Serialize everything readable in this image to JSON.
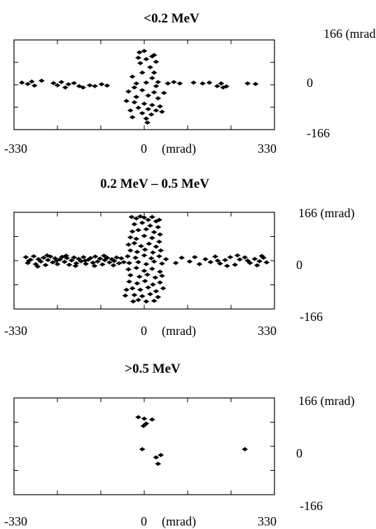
{
  "chart_data": [
    {
      "type": "scatter",
      "title": "<0.2 MeV",
      "xlim": [
        -330,
        330
      ],
      "ylim": [
        -166,
        166
      ],
      "x_tick_labels": {
        "min": "-330",
        "zero": "0",
        "unit": "(mrad)",
        "max": "330"
      },
      "y_tick_labels": {
        "max": "166 (mrad)",
        "zero": "0",
        "min": "-166"
      },
      "grid": false,
      "points": [
        [
          -310,
          8
        ],
        [
          -295,
          3
        ],
        [
          -285,
          12
        ],
        [
          -278,
          -3
        ],
        [
          -260,
          15
        ],
        [
          -230,
          6
        ],
        [
          -220,
          -2
        ],
        [
          -210,
          10
        ],
        [
          -200,
          -10
        ],
        [
          -192,
          2
        ],
        [
          -178,
          6
        ],
        [
          -165,
          -5
        ],
        [
          -155,
          -10
        ],
        [
          -138,
          -2
        ],
        [
          -125,
          -5
        ],
        [
          -108,
          2
        ],
        [
          -94,
          -3
        ],
        [
          -12,
          120
        ],
        [
          0,
          125
        ],
        [
          20,
          105
        ],
        [
          -15,
          100
        ],
        [
          5,
          95
        ],
        [
          25,
          110
        ],
        [
          30,
          85
        ],
        [
          -10,
          80
        ],
        [
          15,
          65
        ],
        [
          25,
          45
        ],
        [
          -5,
          45
        ],
        [
          -30,
          30
        ],
        [
          20,
          25
        ],
        [
          -20,
          5
        ],
        [
          5,
          8
        ],
        [
          30,
          -5
        ],
        [
          -25,
          -10
        ],
        [
          -5,
          -20
        ],
        [
          25,
          -28
        ],
        [
          10,
          -40
        ],
        [
          -20,
          -45
        ],
        [
          35,
          -50
        ],
        [
          -25,
          -65
        ],
        [
          0,
          -70
        ],
        [
          20,
          -75
        ],
        [
          -15,
          -85
        ],
        [
          10,
          -90
        ],
        [
          30,
          -95
        ],
        [
          -5,
          -105
        ],
        [
          18,
          -110
        ],
        [
          -30,
          -120
        ],
        [
          5,
          -125
        ],
        [
          40,
          -80
        ],
        [
          45,
          -100
        ],
        [
          50,
          -30
        ],
        [
          -40,
          -25
        ],
        [
          -45,
          -60
        ],
        [
          35,
          10
        ],
        [
          -35,
          -95
        ],
        [
          8,
          -140
        ],
        [
          60,
          5
        ],
        [
          75,
          10
        ],
        [
          90,
          5
        ],
        [
          125,
          8
        ],
        [
          148,
          5
        ],
        [
          165,
          8
        ],
        [
          185,
          -5
        ],
        [
          195,
          5
        ],
        [
          200,
          -10
        ],
        [
          208,
          -6
        ],
        [
          262,
          5
        ],
        [
          282,
          3
        ]
      ]
    },
    {
      "type": "scatter",
      "title": "0.2 MeV – 0.5 MeV",
      "xlim": [
        -330,
        330
      ],
      "ylim": [
        -166,
        166
      ],
      "x_tick_labels": {
        "min": "-330",
        "zero": "0",
        "unit": "(mrad)",
        "max": "330"
      },
      "y_tick_labels": {
        "max": "166 (mrad)",
        "zero": "0",
        "min": "-166"
      },
      "grid": false,
      "points": [
        [
          -300,
          12
        ],
        [
          -295,
          -8
        ],
        [
          -288,
          3
        ],
        [
          -280,
          15
        ],
        [
          -275,
          -12
        ],
        [
          -268,
          5
        ],
        [
          -262,
          -3
        ],
        [
          -255,
          10
        ],
        [
          -250,
          -15
        ],
        [
          -244,
          2
        ],
        [
          -238,
          14
        ],
        [
          -232,
          -6
        ],
        [
          -226,
          8
        ],
        [
          -220,
          -12
        ],
        [
          -214,
          4
        ],
        [
          -208,
          13
        ],
        [
          -202,
          -4
        ],
        [
          -196,
          9
        ],
        [
          -190,
          -14
        ],
        [
          -184,
          1
        ],
        [
          -178,
          11
        ],
        [
          -172,
          -9
        ],
        [
          -166,
          6
        ],
        [
          -160,
          -2
        ],
        [
          -154,
          12
        ],
        [
          -148,
          -11
        ],
        [
          -142,
          3
        ],
        [
          -136,
          9
        ],
        [
          -130,
          -7
        ],
        [
          -124,
          14
        ],
        [
          -118,
          -3
        ],
        [
          -112,
          7
        ],
        [
          -106,
          -13
        ],
        [
          -100,
          2
        ],
        [
          -94,
          10
        ],
        [
          -88,
          -6
        ],
        [
          -82,
          5
        ],
        [
          -76,
          -1
        ],
        [
          -70,
          11
        ],
        [
          -64,
          -9
        ],
        [
          -292,
          0
        ],
        [
          -270,
          -20
        ],
        [
          -246,
          18
        ],
        [
          -222,
          0
        ],
        [
          -198,
          17
        ],
        [
          -174,
          -18
        ],
        [
          -150,
          0
        ],
        [
          -126,
          -18
        ],
        [
          -102,
          17
        ],
        [
          -78,
          -16
        ],
        [
          -58,
          8
        ],
        [
          -52,
          -5
        ],
        [
          -20,
          145
        ],
        [
          -10,
          152
        ],
        [
          0,
          148
        ],
        [
          10,
          140
        ],
        [
          20,
          150
        ],
        [
          30,
          135
        ],
        [
          -25,
          125
        ],
        [
          -5,
          130
        ],
        [
          15,
          120
        ],
        [
          35,
          115
        ],
        [
          -30,
          100
        ],
        [
          -15,
          105
        ],
        [
          5,
          108
        ],
        [
          25,
          98
        ],
        [
          40,
          90
        ],
        [
          -35,
          80
        ],
        [
          -20,
          75
        ],
        [
          0,
          85
        ],
        [
          20,
          78
        ],
        [
          38,
          65
        ],
        [
          -40,
          55
        ],
        [
          -25,
          60
        ],
        [
          -8,
          50
        ],
        [
          12,
          58
        ],
        [
          30,
          48
        ],
        [
          -35,
          35
        ],
        [
          -18,
          30
        ],
        [
          2,
          38
        ],
        [
          22,
          28
        ],
        [
          42,
          35
        ],
        [
          -42,
          15
        ],
        [
          -22,
          10
        ],
        [
          0,
          18
        ],
        [
          18,
          8
        ],
        [
          38,
          15
        ],
        [
          -38,
          -8
        ],
        [
          -15,
          -5
        ],
        [
          5,
          -12
        ],
        [
          25,
          -3
        ],
        [
          45,
          -10
        ],
        [
          -40,
          -30
        ],
        [
          -20,
          -25
        ],
        [
          0,
          -35
        ],
        [
          20,
          -28
        ],
        [
          40,
          -38
        ],
        [
          -35,
          -50
        ],
        [
          -12,
          -55
        ],
        [
          8,
          -48
        ],
        [
          28,
          -58
        ],
        [
          45,
          -52
        ],
        [
          -38,
          -72
        ],
        [
          -18,
          -78
        ],
        [
          2,
          -70
        ],
        [
          22,
          -82
        ],
        [
          40,
          -75
        ],
        [
          -30,
          -95
        ],
        [
          -10,
          -100
        ],
        [
          10,
          -92
        ],
        [
          30,
          -105
        ],
        [
          -25,
          -118
        ],
        [
          -5,
          -122
        ],
        [
          15,
          -115
        ],
        [
          35,
          -125
        ],
        [
          -15,
          -135
        ],
        [
          5,
          -140
        ],
        [
          25,
          -138
        ],
        [
          -45,
          -100
        ],
        [
          48,
          -95
        ],
        [
          -48,
          -120
        ],
        [
          -28,
          -140
        ],
        [
          38,
          140
        ],
        [
          -32,
          150
        ],
        [
          55,
          5
        ],
        [
          80,
          -8
        ],
        [
          95,
          10
        ],
        [
          115,
          -3
        ],
        [
          128,
          12
        ],
        [
          140,
          -12
        ],
        [
          155,
          5
        ],
        [
          168,
          -5
        ],
        [
          180,
          14
        ],
        [
          192,
          -10
        ],
        [
          205,
          2
        ],
        [
          218,
          12
        ],
        [
          230,
          -14
        ],
        [
          242,
          4
        ],
        [
          255,
          11
        ],
        [
          268,
          -8
        ],
        [
          280,
          6
        ],
        [
          292,
          -2
        ],
        [
          302,
          10
        ],
        [
          310,
          -6
        ],
        [
          186,
          0
        ],
        [
          210,
          -18
        ],
        [
          236,
          18
        ],
        [
          262,
          0
        ],
        [
          286,
          -16
        ],
        [
          298,
          16
        ]
      ]
    },
    {
      "type": "scatter",
      "title": ">0.5 MeV",
      "xlim": [
        -330,
        330
      ],
      "ylim": [
        -166,
        166
      ],
      "x_tick_labels": {
        "min": "-330",
        "zero": "0",
        "unit": "(mrad)",
        "max": "330"
      },
      "y_tick_labels": {
        "max": "166 (mrad)",
        "zero": "0",
        "min": "-166"
      },
      "grid": false,
      "points": [
        [
          -15,
          100
        ],
        [
          0,
          95
        ],
        [
          20,
          92
        ],
        [
          5,
          78
        ],
        [
          -2,
          70
        ],
        [
          -5,
          -10
        ],
        [
          30,
          -38
        ],
        [
          42,
          -30
        ],
        [
          35,
          -60
        ],
        [
          255,
          -10
        ]
      ]
    }
  ]
}
